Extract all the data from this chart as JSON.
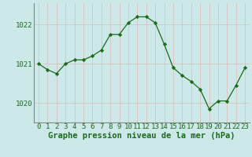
{
  "x": [
    0,
    1,
    2,
    3,
    4,
    5,
    6,
    7,
    8,
    9,
    10,
    11,
    12,
    13,
    14,
    15,
    16,
    17,
    18,
    19,
    20,
    21,
    22,
    23
  ],
  "y": [
    1021.0,
    1020.85,
    1020.75,
    1021.0,
    1021.1,
    1021.1,
    1021.2,
    1021.35,
    1021.75,
    1021.75,
    1022.05,
    1022.2,
    1022.2,
    1022.05,
    1021.5,
    1020.9,
    1020.7,
    1020.55,
    1020.35,
    1019.85,
    1020.05,
    1020.05,
    1020.45,
    1020.9
  ],
  "line_color": "#1a6b1a",
  "marker": "D",
  "marker_size": 2.2,
  "background_color": "#cce8e8",
  "grid_color": "#ddbbbb",
  "xlabel": "Graphe pression niveau de la mer (hPa)",
  "xlabel_fontsize": 7.5,
  "ylabel_ticks": [
    1020,
    1021,
    1022
  ],
  "xlim": [
    -0.5,
    23.5
  ],
  "ylim": [
    1019.5,
    1022.55
  ],
  "tick_fontsize": 6.5,
  "spine_color": "#888888"
}
